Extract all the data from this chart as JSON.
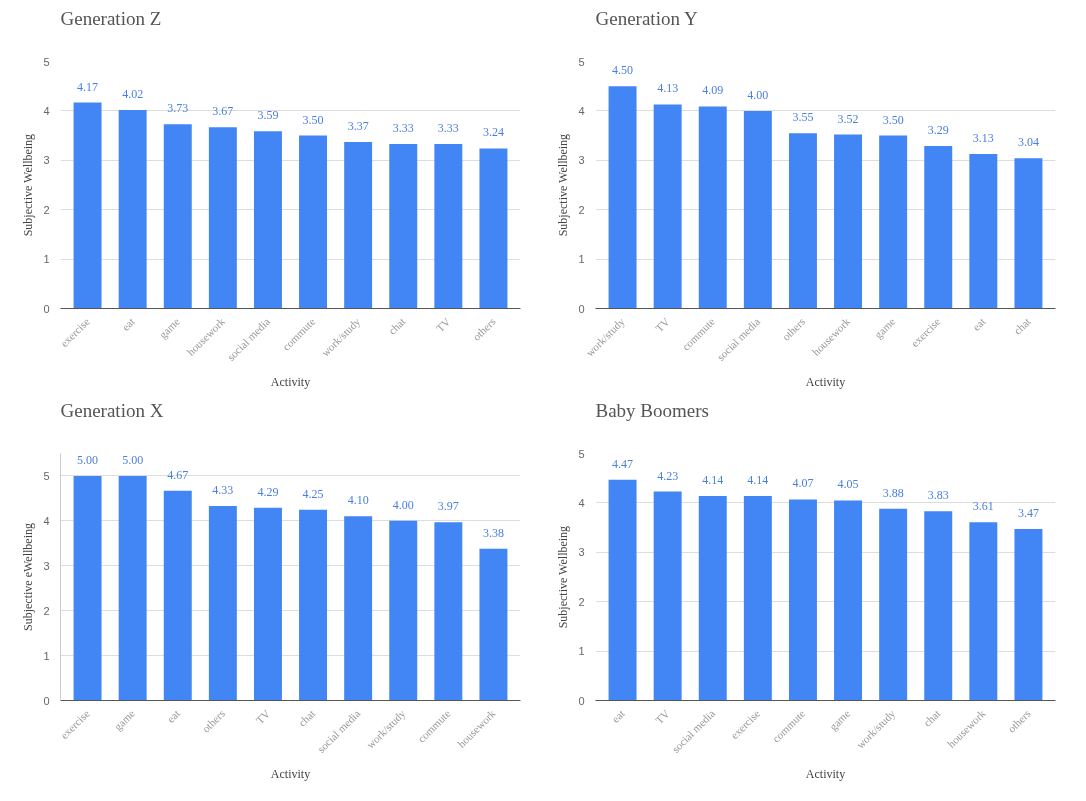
{
  "chart_data": [
    {
      "type": "bar",
      "title": "Generation Z",
      "xlabel": "Activity",
      "ylabel": "Subjective Wellbeing",
      "categories": [
        "exercise",
        "eat",
        "game",
        "housework",
        "social media",
        "commute",
        "work/study",
        "chat",
        "TV",
        "others"
      ],
      "values": [
        4.17,
        4.02,
        3.73,
        3.67,
        3.59,
        3.5,
        3.37,
        3.33,
        3.33,
        3.24
      ],
      "value_labels": [
        "4.17",
        "4.02",
        "3.73",
        "3.67",
        "3.59",
        "3.50",
        "3.37",
        "3.33",
        "3.33",
        "3.24"
      ],
      "color": "#4285f4",
      "ylim": [
        0,
        5
      ],
      "yticks": [
        0,
        1,
        2,
        3,
        4,
        5
      ],
      "grid": "y",
      "legend": false
    },
    {
      "type": "bar",
      "title": "Generation Y",
      "xlabel": "Activity",
      "ylabel": "Subjective Wellbeing",
      "categories": [
        "work/study",
        "TV",
        "commute",
        "social media",
        "others",
        "housework",
        "game",
        "exercise",
        "eat",
        "chat"
      ],
      "values": [
        4.5,
        4.13,
        4.09,
        4.0,
        3.55,
        3.52,
        3.5,
        3.29,
        3.13,
        3.04
      ],
      "value_labels": [
        "4.50",
        "4.13",
        "4.09",
        "4.00",
        "3.55",
        "3.52",
        "3.50",
        "3.29",
        "3.13",
        "3.04"
      ],
      "color": "#4285f4",
      "ylim": [
        0,
        5
      ],
      "yticks": [
        0,
        1,
        2,
        3,
        4,
        5
      ],
      "grid": "y",
      "legend": false
    },
    {
      "type": "bar",
      "title": "Generation X",
      "xlabel": "Activity",
      "ylabel": "Subjective eWellbeing",
      "categories": [
        "exercise",
        "game",
        "eat",
        "others",
        "TV",
        "chat",
        "social media",
        "work/study",
        "commute",
        "housework"
      ],
      "values": [
        5.0,
        5.0,
        4.67,
        4.33,
        4.29,
        4.25,
        4.1,
        4.0,
        3.97,
        3.38
      ],
      "value_labels": [
        "5.00",
        "5.00",
        "4.67",
        "4.33",
        "4.29",
        "4.25",
        "4.10",
        "4.00",
        "3.97",
        "3.38"
      ],
      "color": "#4285f4",
      "ylim": [
        0,
        5.5
      ],
      "yticks": [
        0,
        1,
        2,
        3,
        4,
        5
      ],
      "grid": "y",
      "legend": false
    },
    {
      "type": "bar",
      "title": "Baby Boomers",
      "xlabel": "Activity",
      "ylabel": "Subjective Wellbeing",
      "categories": [
        "eat",
        "TV",
        "social media",
        "exercise",
        "commute",
        "game",
        "work/study",
        "chat",
        "housework",
        "others"
      ],
      "values": [
        4.47,
        4.23,
        4.14,
        4.14,
        4.07,
        4.05,
        3.88,
        3.83,
        3.61,
        3.47
      ],
      "value_labels": [
        "4.47",
        "4.23",
        "4.14",
        "4.14",
        "4.07",
        "4.05",
        "3.88",
        "3.83",
        "3.61",
        "3.47"
      ],
      "color": "#4285f4",
      "ylim": [
        0,
        5
      ],
      "yticks": [
        0,
        1,
        2,
        3,
        4,
        5
      ],
      "grid": "y",
      "legend": false
    }
  ]
}
